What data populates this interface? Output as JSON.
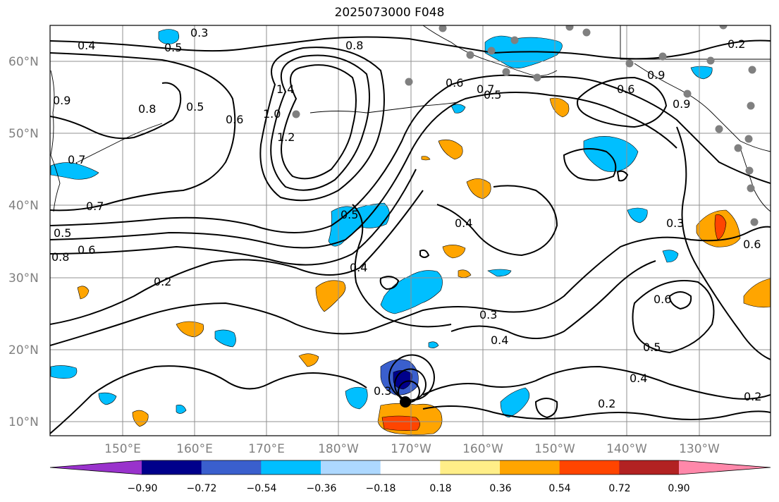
{
  "title": "2025073000 F048",
  "map": {
    "lat_labels": [
      "60°N",
      "50°N",
      "40°N",
      "30°N",
      "20°N",
      "10°N"
    ],
    "lon_labels": [
      "150°E",
      "160°E",
      "170°E",
      "180°W",
      "170°W",
      "160°W",
      "150°W",
      "140°W",
      "130°W"
    ],
    "contour_labels": [
      "0.4",
      "0.3",
      "0.5",
      "0.8",
      "0.6",
      "0.7",
      "1.4",
      "1.2",
      "1.0",
      "0.6",
      "0.5",
      "0.2",
      "0.9",
      "0.8",
      "0.6",
      "0.5",
      "0.7",
      "0.9",
      "0.5",
      "0.7",
      "0.8",
      "0.6",
      "0.5",
      "0.2",
      "0.4",
      "0.4",
      "0.3",
      "0.3",
      "0.4",
      "0.5",
      "0.6",
      "0.4",
      "0.2",
      "0.2",
      "0.3",
      "0.6",
      "0.9"
    ],
    "station_color": "#808080",
    "contour_color": "#000000"
  },
  "colorbar": {
    "colors": [
      "#9932cc",
      "#00008b",
      "#3a5fcd",
      "#00bfff",
      "#add8ff",
      "#ffffff",
      "#ffee88",
      "#ffa500",
      "#ff4500",
      "#b22222",
      "#ff88aa"
    ],
    "tick_labels": [
      "−0.90",
      "−0.72",
      "−0.54",
      "−0.36",
      "−0.18",
      "0.18",
      "0.36",
      "0.54",
      "0.72",
      "0.90"
    ]
  }
}
